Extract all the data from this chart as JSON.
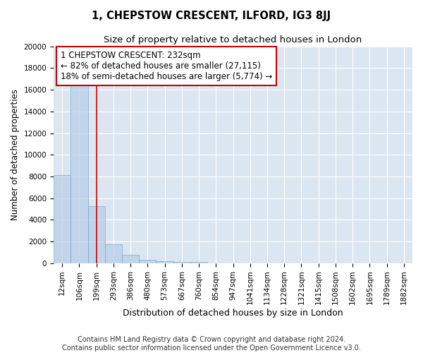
{
  "title": "1, CHEPSTOW CRESCENT, ILFORD, IG3 8JJ",
  "subtitle": "Size of property relative to detached houses in London",
  "xlabel": "Distribution of detached houses by size in London",
  "ylabel": "Number of detached properties",
  "bar_labels": [
    "12sqm",
    "106sqm",
    "199sqm",
    "293sqm",
    "386sqm",
    "480sqm",
    "573sqm",
    "667sqm",
    "760sqm",
    "854sqm",
    "947sqm",
    "1041sqm",
    "1134sqm",
    "1228sqm",
    "1321sqm",
    "1415sqm",
    "1508sqm",
    "1602sqm",
    "1695sqm",
    "1789sqm",
    "1882sqm"
  ],
  "bar_values": [
    8100,
    16600,
    5300,
    1750,
    800,
    300,
    200,
    150,
    100,
    0,
    0,
    0,
    0,
    0,
    0,
    0,
    0,
    0,
    0,
    0,
    0
  ],
  "bar_color": "#b8cfe8",
  "bar_edgecolor": "#6aaad4",
  "bar_alpha": 0.75,
  "vline_x": 2.0,
  "vline_color": "#cc0000",
  "annotation_line1": "1 CHEPSTOW CRESCENT: 232sqm",
  "annotation_line2": "← 82% of detached houses are smaller (27,115)",
  "annotation_line3": "18% of semi-detached houses are larger (5,774) →",
  "annotation_box_color": "white",
  "annotation_box_edgecolor": "#cc0000",
  "ylim": [
    0,
    20000
  ],
  "yticks": [
    0,
    2000,
    4000,
    6000,
    8000,
    10000,
    12000,
    14000,
    16000,
    18000,
    20000
  ],
  "background_color": "#dce6f0",
  "grid_color": "white",
  "footer_line1": "Contains HM Land Registry data © Crown copyright and database right 2024.",
  "footer_line2": "Contains public sector information licensed under the Open Government Licence v3.0.",
  "title_fontsize": 10.5,
  "subtitle_fontsize": 9.5,
  "xlabel_fontsize": 9,
  "ylabel_fontsize": 8.5,
  "tick_fontsize": 7.5,
  "annotation_fontsize": 8.5,
  "footer_fontsize": 7
}
